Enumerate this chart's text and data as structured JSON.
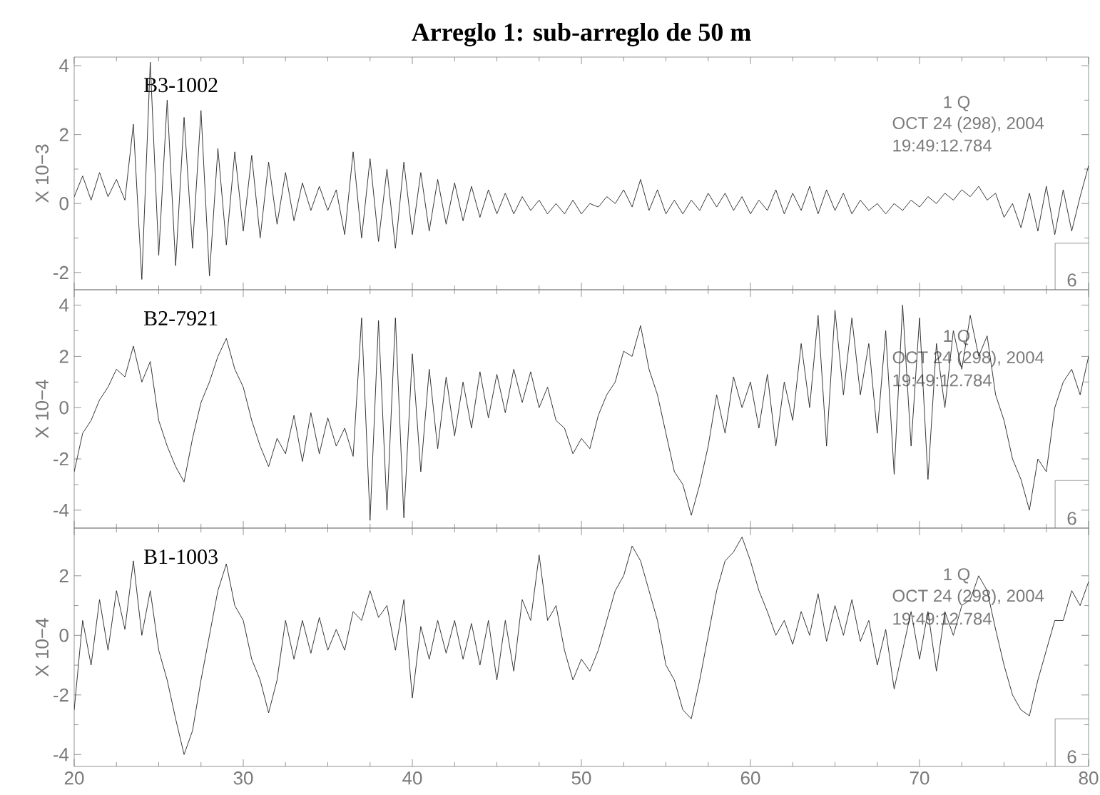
{
  "chart_data": [
    {
      "type": "line",
      "title": "Arreglo 1: sub-arreglo de 50 m",
      "ylabel": "X 10−3",
      "xlim": [
        20,
        80
      ],
      "ylim": [
        -2.5,
        4.25
      ],
      "xticks": [
        20,
        30,
        40,
        50,
        60,
        70,
        80
      ],
      "yticks": [
        -2,
        0,
        2,
        4
      ],
      "tick_labels": "y",
      "color": "#222222",
      "annotations": [
        "B3-1002",
        "1   Q",
        "OCT 24 (298), 2004",
        "19:49:12.784",
        "6"
      ],
      "x": [
        20,
        20.5,
        21,
        21.5,
        22,
        22.5,
        23,
        23.5,
        24,
        24.5,
        25,
        25.5,
        26,
        26.5,
        27,
        27.5,
        28,
        28.5,
        29,
        29.5,
        30,
        30.5,
        31,
        31.5,
        32,
        32.5,
        33,
        33.5,
        34,
        34.5,
        35,
        35.5,
        36,
        36.5,
        37,
        37.5,
        38,
        38.5,
        39,
        39.5,
        40,
        40.5,
        41,
        41.5,
        42,
        42.5,
        43,
        43.5,
        44,
        44.5,
        45,
        45.5,
        46,
        46.5,
        47,
        47.5,
        48,
        48.5,
        49,
        49.5,
        50,
        50.5,
        51,
        51.5,
        52,
        52.5,
        53,
        53.5,
        54,
        54.5,
        55,
        55.5,
        56,
        56.5,
        57,
        57.5,
        58,
        58.5,
        59,
        59.5,
        60,
        60.5,
        61,
        61.5,
        62,
        62.5,
        63,
        63.5,
        64,
        64.5,
        65,
        65.5,
        66,
        66.5,
        67,
        67.5,
        68,
        68.5,
        69,
        69.5,
        70,
        70.5,
        71,
        71.5,
        72,
        72.5,
        73,
        73.5,
        74,
        74.5,
        75,
        75.5,
        76,
        76.5,
        77,
        77.5,
        78,
        78.5,
        79,
        79.5,
        80
      ],
      "values": [
        0.2,
        0.8,
        0.1,
        0.9,
        0.2,
        0.7,
        0.1,
        2.3,
        -2.2,
        4.1,
        -1.5,
        3.0,
        -1.8,
        2.5,
        -1.3,
        2.7,
        -2.1,
        1.6,
        -1.2,
        1.5,
        -0.8,
        1.4,
        -1.0,
        1.2,
        -0.6,
        0.9,
        -0.5,
        0.6,
        -0.2,
        0.5,
        -0.2,
        0.4,
        -0.9,
        1.5,
        -1.0,
        1.3,
        -1.1,
        1.0,
        -1.3,
        1.2,
        -0.9,
        0.9,
        -0.8,
        0.7,
        -0.6,
        0.6,
        -0.5,
        0.5,
        -0.4,
        0.4,
        -0.3,
        0.3,
        -0.3,
        0.2,
        -0.2,
        0.1,
        -0.3,
        0.0,
        -0.3,
        0.1,
        -0.3,
        0.0,
        -0.1,
        0.2,
        0.0,
        0.4,
        -0.1,
        0.7,
        -0.2,
        0.4,
        -0.3,
        0.1,
        -0.3,
        0.1,
        -0.2,
        0.3,
        -0.1,
        0.3,
        -0.2,
        0.2,
        -0.3,
        0.1,
        -0.2,
        0.4,
        -0.3,
        0.3,
        -0.2,
        0.5,
        -0.3,
        0.4,
        -0.2,
        0.3,
        -0.3,
        0.1,
        -0.2,
        0.0,
        -0.3,
        0.0,
        -0.2,
        0.1,
        -0.1,
        0.2,
        0.0,
        0.3,
        0.1,
        0.4,
        0.2,
        0.5,
        0.1,
        0.3,
        -0.4,
        0.0,
        -0.7,
        0.3,
        -0.8,
        0.5,
        -0.9,
        0.4,
        -0.8,
        0.2,
        1.1
      ]
    },
    {
      "type": "line",
      "ylabel": "X 10−4",
      "xlim": [
        20,
        80
      ],
      "ylim": [
        -4.7,
        4.6
      ],
      "xticks": [
        20,
        30,
        40,
        50,
        60,
        70,
        80
      ],
      "yticks": [
        -4,
        -2,
        0,
        2,
        4
      ],
      "tick_labels": "y",
      "color": "#222222",
      "annotations": [
        "B2-7921",
        "1   Q",
        "OCT 24 (298), 2004",
        "19:49:12.784",
        "6"
      ],
      "x": [
        20,
        20.5,
        21,
        21.5,
        22,
        22.5,
        23,
        23.5,
        24,
        24.5,
        25,
        25.5,
        26,
        26.5,
        27,
        27.5,
        28,
        28.5,
        29,
        29.5,
        30,
        30.5,
        31,
        31.5,
        32,
        32.5,
        33,
        33.5,
        34,
        34.5,
        35,
        35.5,
        36,
        36.5,
        37,
        37.5,
        38,
        38.5,
        39,
        39.5,
        40,
        40.5,
        41,
        41.5,
        42,
        42.5,
        43,
        43.5,
        44,
        44.5,
        45,
        45.5,
        46,
        46.5,
        47,
        47.5,
        48,
        48.5,
        49,
        49.5,
        50,
        50.5,
        51,
        51.5,
        52,
        52.5,
        53,
        53.5,
        54,
        54.5,
        55,
        55.5,
        56,
        56.5,
        57,
        57.5,
        58,
        58.5,
        59,
        59.5,
        60,
        60.5,
        61,
        61.5,
        62,
        62.5,
        63,
        63.5,
        64,
        64.5,
        65,
        65.5,
        66,
        66.5,
        67,
        67.5,
        68,
        68.5,
        69,
        69.5,
        70,
        70.5,
        71,
        71.5,
        72,
        72.5,
        73,
        73.5,
        74,
        74.5,
        75,
        75.5,
        76,
        76.5,
        77,
        77.5,
        78,
        78.5,
        79,
        79.5,
        80
      ],
      "values": [
        -2.5,
        -1.0,
        -0.5,
        0.3,
        0.8,
        1.5,
        1.2,
        2.4,
        1.0,
        1.8,
        -0.5,
        -1.5,
        -2.3,
        -2.9,
        -1.2,
        0.2,
        1.0,
        2.0,
        2.7,
        1.5,
        0.8,
        -0.5,
        -1.5,
        -2.3,
        -1.2,
        -1.8,
        -0.3,
        -2.1,
        -0.2,
        -1.8,
        -0.4,
        -1.5,
        -0.8,
        -1.9,
        3.5,
        -4.4,
        3.4,
        -4.0,
        3.5,
        -4.3,
        2.1,
        -2.5,
        1.5,
        -1.6,
        1.2,
        -1.1,
        1.0,
        -0.8,
        1.4,
        -0.4,
        1.3,
        -0.2,
        1.5,
        0.2,
        1.4,
        0.0,
        0.8,
        -0.5,
        -0.8,
        -1.8,
        -1.2,
        -1.6,
        -0.3,
        0.5,
        1.0,
        2.2,
        2.0,
        3.2,
        1.5,
        0.5,
        -1.0,
        -2.5,
        -3.0,
        -4.2,
        -3.0,
        -1.5,
        0.5,
        -1.0,
        1.2,
        0.0,
        1.0,
        -0.8,
        1.3,
        -1.5,
        1.0,
        -0.5,
        2.5,
        0.0,
        3.6,
        -1.5,
        3.8,
        0.5,
        3.5,
        0.5,
        2.5,
        -1.0,
        3.0,
        -2.6,
        4.0,
        -1.5,
        3.5,
        -2.8,
        2.5,
        0.0,
        3.0,
        1.5,
        3.6,
        2.0,
        2.8,
        0.5,
        -0.5,
        -2.0,
        -2.8,
        -4.0,
        -2.0,
        -2.5,
        0.0,
        1.0,
        1.5,
        0.5,
        2.0
      ]
    },
    {
      "type": "line",
      "ylabel": "X 10−4",
      "xlim": [
        20,
        80
      ],
      "ylim": [
        -4.4,
        3.6
      ],
      "xticks": [
        20,
        30,
        40,
        50,
        60,
        70,
        80
      ],
      "yticks": [
        -4,
        -2,
        0,
        2
      ],
      "color": "#222222",
      "annotations": [
        "B1-1003",
        "1   Q",
        "OCT 24 (298), 2004",
        "19:49:12.784",
        "6"
      ],
      "x": [
        20,
        20.5,
        21,
        21.5,
        22,
        22.5,
        23,
        23.5,
        24,
        24.5,
        25,
        25.5,
        26,
        26.5,
        27,
        27.5,
        28,
        28.5,
        29,
        29.5,
        30,
        30.5,
        31,
        31.5,
        32,
        32.5,
        33,
        33.5,
        34,
        34.5,
        35,
        35.5,
        36,
        36.5,
        37,
        37.5,
        38,
        38.5,
        39,
        39.5,
        40,
        40.5,
        41,
        41.5,
        42,
        42.5,
        43,
        43.5,
        44,
        44.5,
        45,
        45.5,
        46,
        46.5,
        47,
        47.5,
        48,
        48.5,
        49,
        49.5,
        50,
        50.5,
        51,
        51.5,
        52,
        52.5,
        53,
        53.5,
        54,
        54.5,
        55,
        55.5,
        56,
        56.5,
        57,
        57.5,
        58,
        58.5,
        59,
        59.5,
        60,
        60.5,
        61,
        61.5,
        62,
        62.5,
        63,
        63.5,
        64,
        64.5,
        65,
        65.5,
        66,
        66.5,
        67,
        67.5,
        68,
        68.5,
        69,
        69.5,
        70,
        70.5,
        71,
        71.5,
        72,
        72.5,
        73,
        73.5,
        74,
        74.5,
        75,
        75.5,
        76,
        76.5,
        77,
        77.5,
        78,
        78.5,
        79,
        79.5,
        80
      ],
      "values": [
        -2.5,
        0.5,
        -1.0,
        1.2,
        -0.5,
        1.5,
        0.2,
        2.5,
        0.0,
        1.5,
        -0.5,
        -1.5,
        -2.8,
        -4.0,
        -3.2,
        -1.5,
        0.0,
        1.5,
        2.4,
        1.0,
        0.5,
        -0.8,
        -1.5,
        -2.6,
        -1.5,
        0.5,
        -0.8,
        0.5,
        -0.6,
        0.6,
        -0.5,
        0.2,
        -0.5,
        0.8,
        0.5,
        1.5,
        0.6,
        1.0,
        -0.5,
        1.2,
        -2.1,
        0.3,
        -0.8,
        0.5,
        -0.6,
        0.5,
        -0.8,
        0.4,
        -1.0,
        0.5,
        -1.5,
        0.5,
        -1.2,
        1.2,
        0.5,
        2.7,
        0.5,
        1.0,
        -0.5,
        -1.5,
        -0.8,
        -1.2,
        -0.5,
        0.5,
        1.5,
        2.0,
        3.0,
        2.5,
        1.5,
        0.5,
        -1.0,
        -1.5,
        -2.5,
        -2.8,
        -1.5,
        0.0,
        1.5,
        2.5,
        2.8,
        3.3,
        2.5,
        1.5,
        0.8,
        0.0,
        0.5,
        -0.3,
        0.8,
        0.0,
        1.4,
        -0.2,
        1.0,
        0.0,
        1.2,
        -0.2,
        0.5,
        -1.0,
        0.2,
        -1.8,
        -0.5,
        0.8,
        -0.8,
        0.8,
        -1.2,
        0.8,
        0.0,
        1.0,
        1.2,
        2.0,
        1.5,
        0.2,
        -1.0,
        -2.0,
        -2.5,
        -2.7,
        -1.5,
        -0.5,
        0.5,
        0.5,
        1.5,
        1.0,
        1.8
      ]
    }
  ]
}
